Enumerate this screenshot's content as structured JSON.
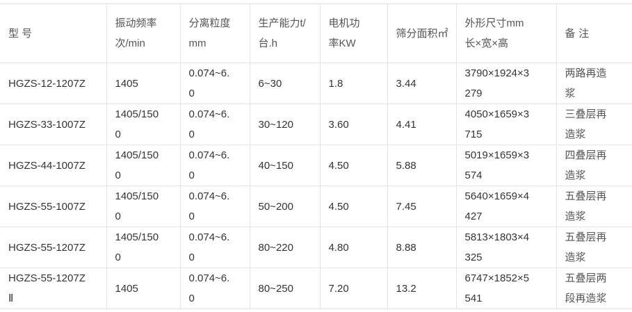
{
  "headers": [
    "型 号",
    "振动频率次/min",
    "分离粒度mm",
    "生产能力t/台.h",
    "电机功率KW",
    "筛分面积㎡",
    "外形尺寸mm长×宽×高",
    "备 注"
  ],
  "rows": [
    [
      "HGZS-12-1207Z",
      "1405",
      "0.074~6.0",
      "6~30",
      "1.8",
      "3.44",
      "3790×1924×3279",
      "两路再造浆"
    ],
    [
      "HGZS-33-1007Z",
      "1405/1500",
      "0.074~6.0",
      "30~120",
      "3.60",
      "4.41",
      "4050×1659×3715",
      "三叠层再造浆"
    ],
    [
      "HGZS-44-1007Z",
      "1405/1500",
      "0.074~6.0",
      "40~150",
      "4.50",
      "5.88",
      "5019×1659×3574",
      "四叠层再造浆"
    ],
    [
      "HGZS-55-1007Z",
      "1405/1500",
      "0.074~6.0",
      "50~200",
      "4.50",
      "7.45",
      "5640×1659×4427",
      "五叠层再造浆"
    ],
    [
      "HGZS-55-1207Z",
      "1405/1500",
      "0.074~6.0",
      "80~220",
      "4.80",
      "8.88",
      "5813×1803×4325",
      "五叠层再造浆"
    ],
    [
      "HGZS-55-1207ZⅡ",
      "1405",
      "0.074~6.0",
      "80~250",
      "7.20",
      "13.2",
      "6747×1852×5541",
      "五叠层两段再造浆"
    ]
  ]
}
